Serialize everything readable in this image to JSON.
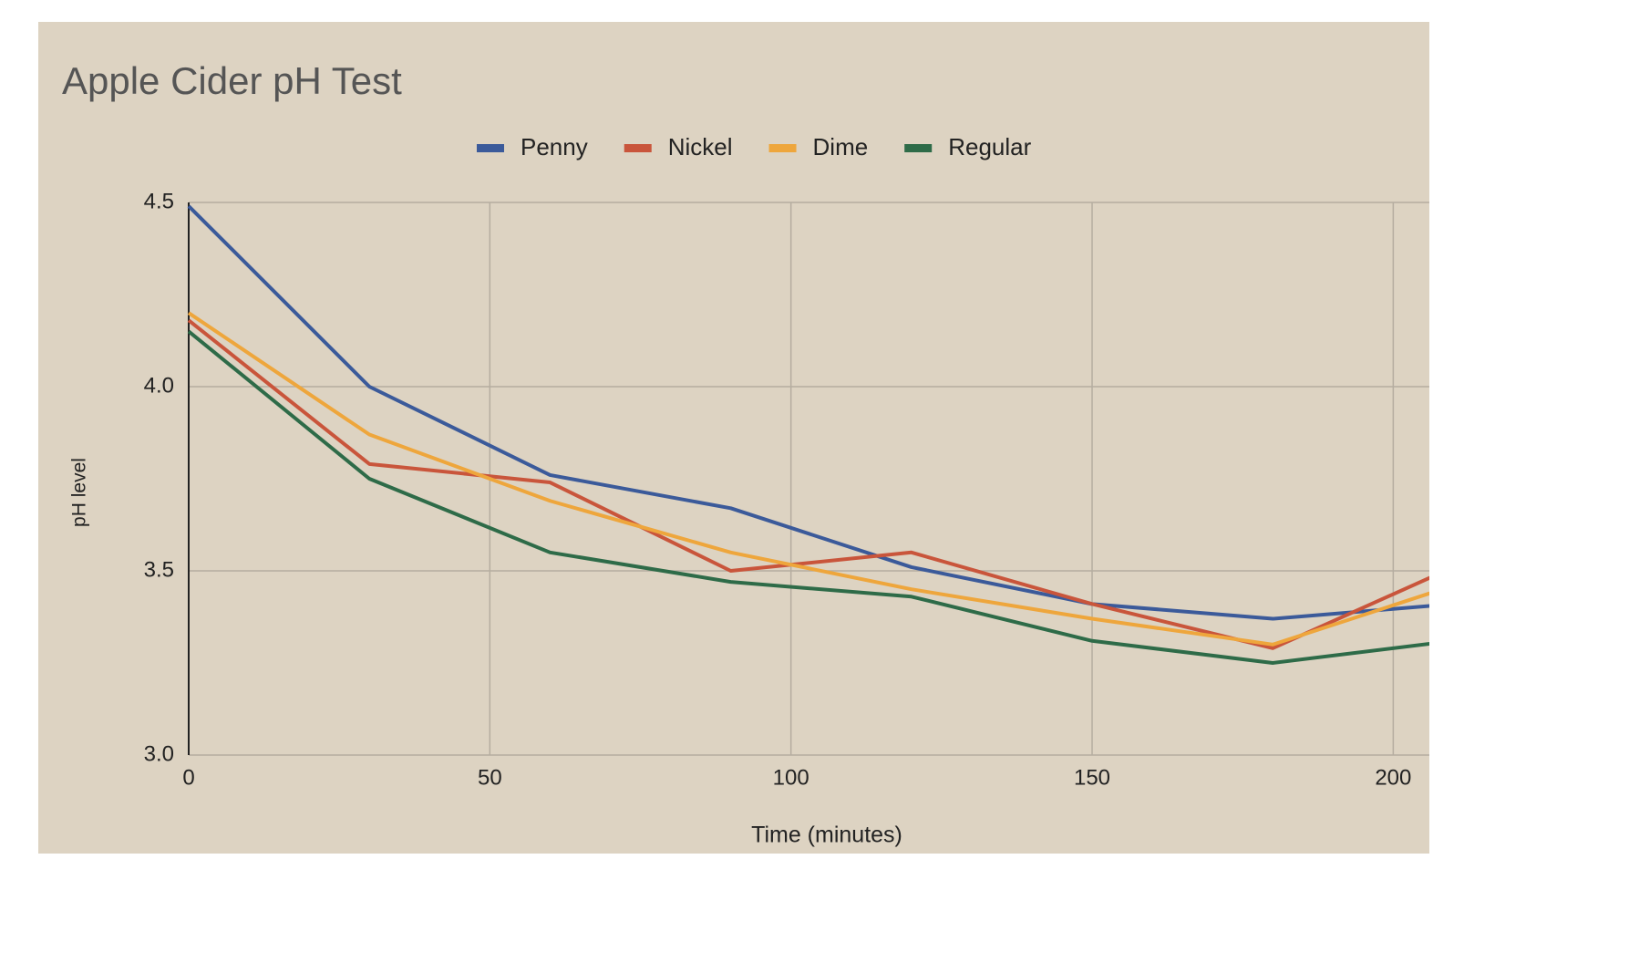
{
  "chart_data": {
    "type": "line",
    "title": "Apple Cider pH Test",
    "xlabel": "Time (minutes)",
    "ylabel": "pH level",
    "x": [
      0,
      30,
      60,
      90,
      120,
      150,
      180,
      210
    ],
    "series": [
      {
        "name": "Penny",
        "color": "#3b5a9a",
        "values": [
          4.49,
          4.0,
          3.76,
          3.67,
          3.51,
          3.41,
          3.37,
          3.41
        ]
      },
      {
        "name": "Nickel",
        "color": "#c9553b",
        "values": [
          4.18,
          3.79,
          3.74,
          3.5,
          3.55,
          3.41,
          3.29,
          3.51
        ]
      },
      {
        "name": "Dime",
        "color": "#eea63c",
        "values": [
          4.2,
          3.87,
          3.69,
          3.55,
          3.45,
          3.37,
          3.3,
          3.46
        ]
      },
      {
        "name": "Regular",
        "color": "#2e6b48",
        "values": [
          4.15,
          3.75,
          3.55,
          3.47,
          3.43,
          3.31,
          3.25,
          3.31
        ]
      }
    ],
    "xlim": [
      0,
      206
    ],
    "xticks": [
      0,
      50,
      100,
      150,
      200
    ],
    "ylim": [
      3.0,
      4.5
    ],
    "yticks": [
      {
        "value": 3.0,
        "label": "3.0"
      },
      3.5,
      {
        "value": 4.0,
        "label": "4.0"
      },
      4.5
    ],
    "grid": true,
    "legend": "top"
  }
}
